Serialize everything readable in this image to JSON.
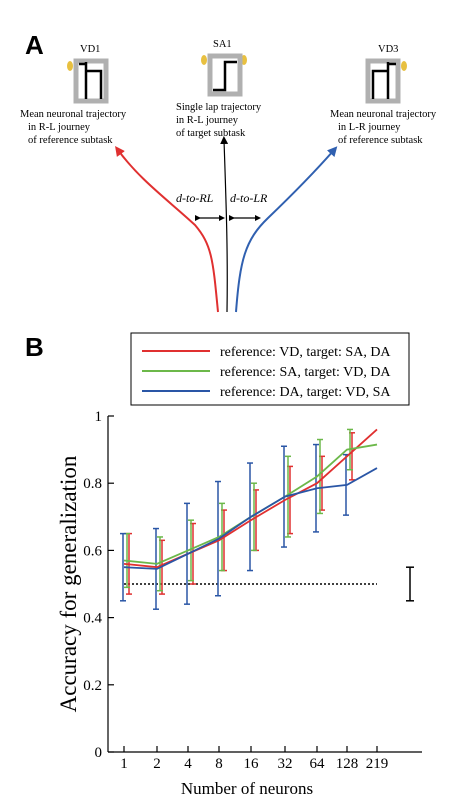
{
  "panel_a": {
    "letter": "A",
    "left_box": {
      "label": "VD1",
      "caption": [
        "Mean neuronal trajectory",
        "in R-L journey",
        "of reference subtask"
      ]
    },
    "middle_box": {
      "label": "SA1",
      "caption": [
        "Single lap trajectory",
        "in R-L journey",
        "of target subtask"
      ]
    },
    "right_box": {
      "label": "VD3",
      "caption": [
        "Mean neuronal trajectory",
        "in L-R journey",
        "of reference subtask"
      ]
    },
    "dist_left": "d-to-RL",
    "dist_right": "d-to-LR",
    "colors": {
      "red": "#e03030",
      "blue": "#3060b0",
      "black": "#000000",
      "box": "#b0b0b0",
      "ear": "#e8c040"
    }
  },
  "panel_b": {
    "letter": "B"
  },
  "chart_data": {
    "type": "line",
    "xlabel": "Number of neurons",
    "ylabel": "Accuracy for generalization",
    "categories": [
      "1",
      "2",
      "4",
      "8",
      "16",
      "32",
      "64",
      "128",
      "219"
    ],
    "yticks": [
      "0",
      "0.2",
      "0.4",
      "0.6",
      "0.8",
      "1"
    ],
    "ylim": [
      0,
      1
    ],
    "chance_level": 0.5,
    "scale_bar": [
      0.45,
      0.55
    ],
    "legend_position": "top-right",
    "series": [
      {
        "name": "reference: VD, target: SA, DA",
        "color": "#e03030",
        "values": [
          0.56,
          0.55,
          0.59,
          0.63,
          0.69,
          0.75,
          0.8,
          0.88,
          0.96
        ],
        "err": [
          0.09,
          0.08,
          0.09,
          0.09,
          0.09,
          0.1,
          0.08,
          0.07,
          0.0
        ]
      },
      {
        "name": "reference: SA, target: VD, DA",
        "color": "#6cb84a",
        "values": [
          0.57,
          0.56,
          0.6,
          0.64,
          0.7,
          0.76,
          0.82,
          0.9,
          0.915
        ],
        "err": [
          0.08,
          0.08,
          0.09,
          0.1,
          0.1,
          0.12,
          0.11,
          0.06,
          0.0
        ]
      },
      {
        "name": "reference: DA, target: VD, SA",
        "color": "#2a56a6",
        "values": [
          0.55,
          0.545,
          0.59,
          0.635,
          0.7,
          0.76,
          0.785,
          0.795,
          0.845
        ],
        "err": [
          0.1,
          0.12,
          0.15,
          0.17,
          0.16,
          0.15,
          0.13,
          0.09,
          0.0
        ]
      }
    ]
  }
}
